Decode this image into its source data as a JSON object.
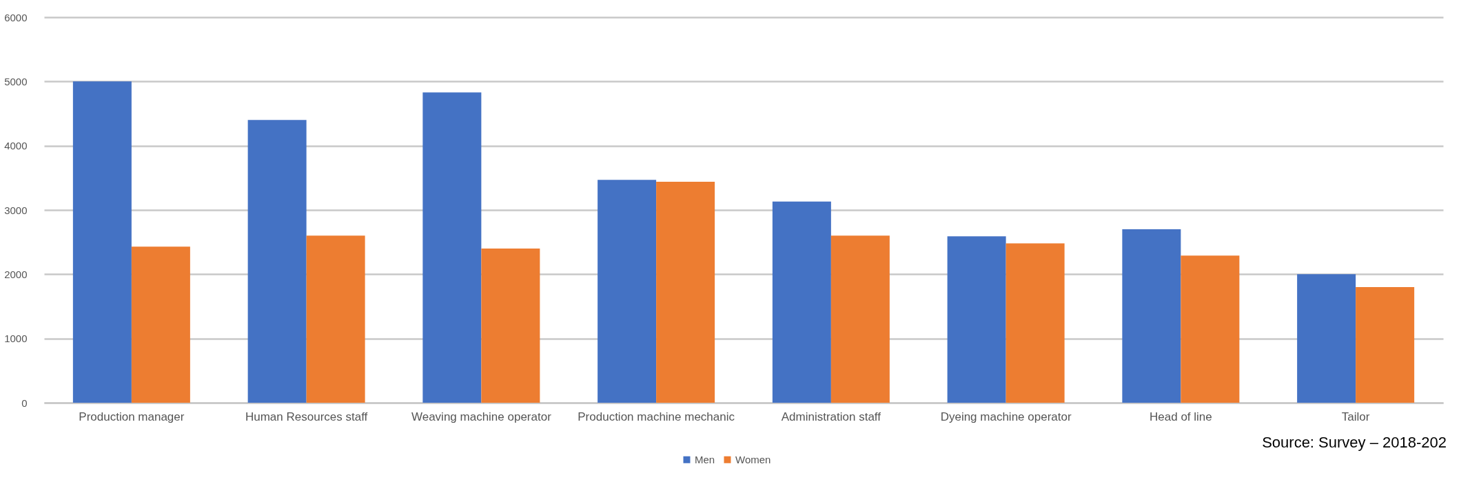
{
  "chart_data": {
    "type": "bar",
    "categories": [
      "Production manager",
      "Human Resources staff",
      "Weaving machine operator",
      "Production machine mechanic",
      "Administration staff",
      "Dyeing machine operator",
      "Head of line",
      "Tailor"
    ],
    "series": [
      {
        "name": "Men",
        "color": "#4472c4",
        "values": [
          5000,
          4400,
          4830,
          3470,
          3130,
          2590,
          2700,
          2000
        ]
      },
      {
        "name": "Women",
        "color": "#ed7d31",
        "values": [
          2430,
          2600,
          2400,
          3440,
          2600,
          2480,
          2290,
          1800
        ]
      }
    ],
    "ylim": [
      0,
      6000
    ],
    "yticks": [
      0,
      1000,
      2000,
      3000,
      4000,
      5000,
      6000
    ],
    "grid": "y",
    "legend": "bottom",
    "annotations": [
      "Source: Survey – 2018-202"
    ]
  }
}
